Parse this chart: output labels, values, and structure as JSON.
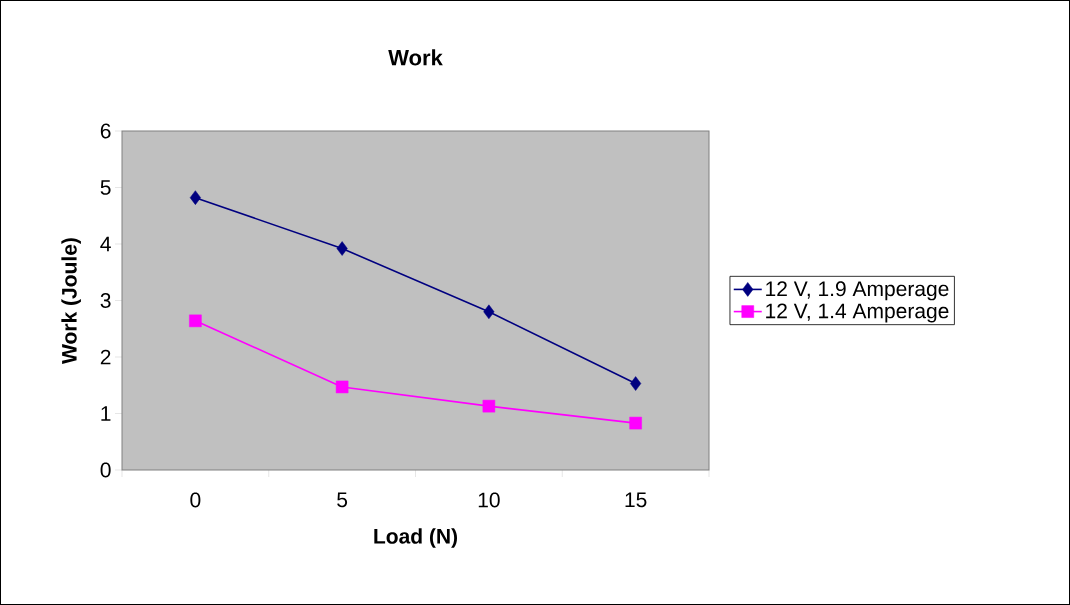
{
  "chart_data": {
    "type": "line",
    "title": "Work",
    "xlabel": "Load (N)",
    "ylabel": "Work (Joule)",
    "categories": [
      "0",
      "5",
      "10",
      "15"
    ],
    "series": [
      {
        "name": "12 V, 1.9 Amperage",
        "color": "#000080",
        "marker": "diamond",
        "values": [
          4.82,
          3.92,
          2.8,
          1.53
        ]
      },
      {
        "name": "12 V, 1.4 Amperage",
        "color": "#ff00ff",
        "marker": "square",
        "values": [
          2.64,
          1.47,
          1.13,
          0.83
        ]
      }
    ],
    "ylim": [
      0,
      6
    ],
    "yticks": [
      0,
      1,
      2,
      3,
      4,
      5,
      6
    ],
    "legend": "right"
  }
}
